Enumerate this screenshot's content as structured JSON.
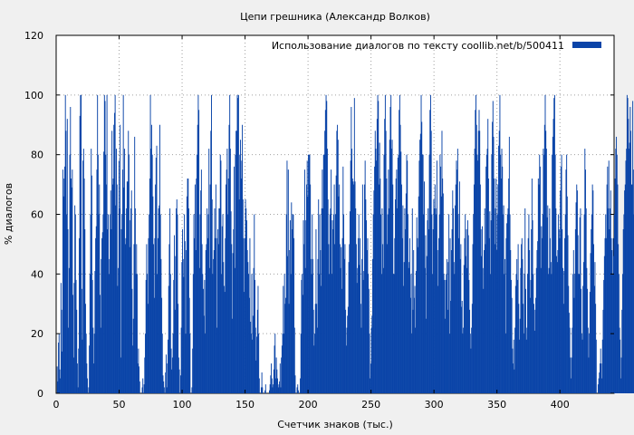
{
  "chart_data": {
    "type": "bar",
    "title": "Цепи грешника (Александр Волков)",
    "xlabel": "Счетчик знаков (тыс.)",
    "ylabel": "% диалогов",
    "legend": {
      "label": "Использование диалогов по тексту  coollib.net/b/500411",
      "placement": "top-right"
    },
    "xlim": [
      0,
      443
    ],
    "ylim": [
      0,
      120
    ],
    "x_ticks": [
      0,
      50,
      100,
      150,
      200,
      250,
      300,
      350,
      400
    ],
    "y_ticks": [
      0,
      20,
      40,
      60,
      80,
      100,
      120
    ],
    "grid": true,
    "bar_color": "#0a44a8",
    "x_step": 0.5,
    "values": [
      0,
      9,
      4,
      17,
      20,
      8,
      5,
      37,
      28,
      14,
      75,
      66,
      72,
      76,
      100,
      88,
      60,
      92,
      55,
      22,
      42,
      80,
      96,
      72,
      69,
      75,
      33,
      12,
      37,
      63,
      60,
      38,
      28,
      10,
      2,
      15,
      52,
      93,
      100,
      100,
      35,
      18,
      78,
      82,
      72,
      55,
      30,
      20,
      10,
      5,
      0,
      2,
      16,
      40,
      60,
      82,
      73,
      38,
      22,
      10,
      20,
      41,
      52,
      56,
      75,
      100,
      80,
      60,
      70,
      33,
      22,
      45,
      52,
      54,
      60,
      81,
      100,
      98,
      80,
      70,
      100,
      55,
      60,
      40,
      45,
      60,
      68,
      55,
      88,
      70,
      72,
      90,
      94,
      100,
      63,
      82,
      70,
      36,
      42,
      78,
      62,
      90,
      12,
      55,
      60,
      75,
      100,
      69,
      82,
      50,
      52,
      62,
      71,
      71,
      88,
      80,
      49,
      58,
      62,
      68,
      35,
      16,
      25,
      50,
      86,
      62,
      40,
      50,
      40,
      10,
      15,
      9,
      4,
      0,
      0,
      0,
      2,
      5,
      0,
      3,
      12,
      20,
      38,
      50,
      40,
      30,
      52,
      60,
      72,
      100,
      82,
      90,
      80,
      66,
      50,
      32,
      52,
      70,
      79,
      83,
      40,
      52,
      62,
      63,
      90,
      60,
      45,
      32,
      20,
      6,
      4,
      2,
      0,
      7,
      13,
      2,
      10,
      18,
      36,
      50,
      62,
      40,
      15,
      8,
      12,
      20,
      38,
      53,
      28,
      46,
      62,
      65,
      60,
      30,
      12,
      8,
      0,
      6,
      22,
      44,
      55,
      45,
      39,
      60,
      51,
      20,
      48,
      66,
      72,
      72,
      62,
      32,
      20,
      0,
      0,
      2,
      15,
      40,
      60,
      52,
      70,
      48,
      72,
      80,
      90,
      100,
      95,
      42,
      60,
      68,
      75,
      50,
      40,
      35,
      26,
      38,
      20,
      48,
      50,
      62,
      52,
      60,
      82,
      42,
      70,
      88,
      100,
      65,
      40,
      45,
      48,
      62,
      52,
      70,
      52,
      22,
      55,
      50,
      62,
      62,
      80,
      78,
      40,
      56,
      60,
      44,
      36,
      34,
      52,
      70,
      75,
      82,
      60,
      72,
      90,
      100,
      82,
      61,
      50,
      25,
      47,
      55,
      76,
      42,
      80,
      88,
      88,
      100,
      99,
      100,
      65,
      80,
      85,
      72,
      78,
      90,
      65,
      52,
      34,
      52,
      65,
      62,
      58,
      48,
      44,
      40,
      32,
      52,
      24,
      20,
      40,
      18,
      26,
      42,
      60,
      38,
      22,
      11,
      19,
      28,
      36,
      20,
      5,
      0,
      0,
      2,
      7,
      2,
      0,
      0,
      0,
      1,
      3,
      0,
      0,
      0,
      0,
      0,
      1,
      3,
      6,
      10,
      5,
      2,
      3,
      8,
      16,
      20,
      5,
      12,
      8,
      5,
      2,
      3,
      4,
      10,
      2,
      12,
      16,
      20,
      36,
      20,
      40,
      30,
      32,
      60,
      78,
      46,
      75,
      30,
      48,
      58,
      40,
      64,
      55,
      60,
      60,
      52,
      22,
      6,
      0,
      0,
      2,
      3,
      1,
      0,
      0,
      5,
      20,
      38,
      40,
      33,
      58,
      50,
      75,
      42,
      58,
      70,
      78,
      66,
      80,
      80,
      80,
      70,
      45,
      40,
      60,
      45,
      28,
      16,
      20,
      30,
      55,
      30,
      22,
      45,
      65,
      40,
      60,
      48,
      36,
      62,
      75,
      62,
      80,
      80,
      88,
      95,
      100,
      98,
      82,
      65,
      50,
      40,
      60,
      62,
      75,
      40,
      58,
      55,
      60,
      70,
      50,
      60,
      73,
      88,
      90,
      85,
      66,
      70,
      50,
      42,
      49,
      35,
      52,
      76,
      60,
      45,
      50,
      28,
      16,
      22,
      26,
      29,
      44,
      50,
      61,
      78,
      96,
      82,
      72,
      71,
      70,
      99,
      71,
      62,
      50,
      37,
      42,
      52,
      60,
      43,
      52,
      30,
      22,
      45,
      70,
      38,
      41,
      70,
      78,
      65,
      58,
      48,
      52,
      40,
      35,
      20,
      5,
      10,
      22,
      26,
      45,
      60,
      68,
      76,
      88,
      82,
      78,
      92,
      100,
      98,
      70,
      84,
      72,
      60,
      40,
      62,
      50,
      42,
      80,
      92,
      100,
      88,
      72,
      50,
      60,
      75,
      62,
      85,
      96,
      100,
      82,
      85,
      70,
      40,
      40,
      52,
      65,
      72,
      75,
      62,
      79,
      80,
      95,
      100,
      90,
      81,
      70,
      52,
      63,
      36,
      44,
      62,
      55,
      67,
      80,
      78,
      60,
      42,
      44,
      52,
      32,
      40,
      20,
      62,
      28,
      48,
      32,
      36,
      22,
      41,
      59,
      52,
      49,
      66,
      78,
      85,
      87,
      100,
      91,
      80,
      80,
      60,
      71,
      42,
      53,
      25,
      46,
      58,
      62,
      55,
      80,
      95,
      100,
      88,
      60,
      40,
      55,
      65,
      62,
      70,
      62,
      60,
      78,
      48,
      36,
      52,
      60,
      80,
      76,
      66,
      88,
      72,
      67,
      40,
      38,
      25,
      38,
      40,
      45,
      28,
      44,
      60,
      20,
      52,
      31,
      48,
      55,
      68,
      62,
      44,
      40,
      63,
      70,
      78,
      75,
      82,
      60,
      52,
      71,
      45,
      50,
      29,
      31,
      20,
      22,
      43,
      52,
      60,
      46,
      55,
      42,
      58,
      53,
      38,
      28,
      20,
      15,
      22,
      30,
      50,
      60,
      70,
      82,
      95,
      100,
      90,
      80,
      78,
      88,
      95,
      88,
      70,
      55,
      46,
      56,
      42,
      35,
      48,
      62,
      50,
      76,
      80,
      82,
      92,
      72,
      52,
      61,
      40,
      58,
      80,
      91,
      98,
      86,
      72,
      50,
      62,
      72,
      48,
      60,
      70,
      83,
      88,
      100,
      80,
      72,
      82,
      76,
      60,
      63,
      40,
      45,
      20,
      52,
      57,
      60,
      62,
      72,
      86,
      60,
      48,
      38,
      32,
      15,
      10,
      18,
      8,
      22,
      36,
      40,
      45,
      38,
      50,
      30,
      18,
      25,
      42,
      50,
      52,
      45,
      30,
      20,
      40,
      62,
      35,
      18,
      22,
      40,
      52,
      60,
      48,
      32,
      38,
      55,
      72,
      58,
      40,
      30,
      21,
      28,
      32,
      42,
      48,
      51,
      72,
      70,
      80,
      76,
      42,
      56,
      52,
      60,
      82,
      80,
      90,
      100,
      88,
      82,
      59,
      63,
      40,
      42,
      62,
      52,
      44,
      40,
      80,
      86,
      92,
      99,
      100,
      80,
      62,
      46,
      44,
      48,
      60,
      55,
      52,
      68,
      76,
      80,
      55,
      42,
      30,
      41,
      52,
      60,
      75,
      80,
      66,
      53,
      36,
      27,
      22,
      12,
      5,
      12,
      22,
      40,
      48,
      32,
      40,
      55,
      64,
      70,
      68,
      53,
      40,
      40,
      59,
      62,
      35,
      20,
      18,
      36,
      44,
      60,
      82,
      75,
      62,
      42,
      35,
      22,
      12,
      20,
      34,
      47,
      55,
      60,
      70,
      68,
      50,
      36,
      44,
      30,
      18,
      0,
      0,
      3,
      5,
      7,
      10,
      15,
      10,
      5,
      18,
      28,
      38,
      46,
      52,
      60,
      52,
      70,
      76,
      62,
      78,
      55,
      62,
      68,
      52,
      48,
      40,
      52,
      46,
      60,
      72,
      82,
      86,
      80,
      70,
      50,
      40,
      22,
      18,
      5,
      12,
      28,
      40,
      55,
      60,
      68,
      70,
      78,
      82,
      100,
      99,
      92,
      82,
      84,
      96,
      88,
      70,
      70,
      98,
      75,
      60,
      38,
      42,
      30,
      20,
      22,
      12,
      3,
      5,
      0,
      10,
      20,
      12,
      8,
      14,
      4
    ]
  }
}
